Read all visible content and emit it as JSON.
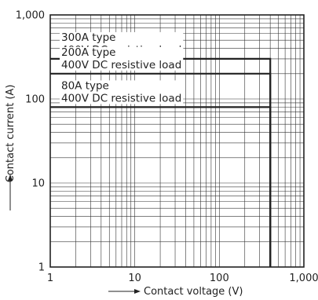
{
  "chart_data": {
    "type": "line",
    "xlabel": "Contact voltage (V)",
    "ylabel": "Contact current (A)",
    "x_scale": "log",
    "y_scale": "log",
    "xlim": [
      1,
      1000
    ],
    "ylim": [
      1,
      1000
    ],
    "x_ticks": [
      "1",
      "10",
      "100",
      "1,000"
    ],
    "y_ticks": [
      "1",
      "10",
      "100",
      "1,000"
    ],
    "grid": true,
    "series": [
      {
        "label_lines": [
          "300A type",
          "400V DC resistive load"
        ],
        "points": [
          [
            1,
            300
          ],
          [
            400,
            300
          ],
          [
            400,
            1
          ]
        ]
      },
      {
        "label_lines": [
          "200A type",
          "400V DC resistive load"
        ],
        "points": [
          [
            1,
            200
          ],
          [
            400,
            200
          ],
          [
            400,
            1
          ]
        ]
      },
      {
        "label_lines": [
          "80A type",
          "400V DC resistive load"
        ],
        "points": [
          [
            1,
            80
          ],
          [
            400,
            80
          ],
          [
            400,
            1
          ]
        ]
      }
    ]
  }
}
